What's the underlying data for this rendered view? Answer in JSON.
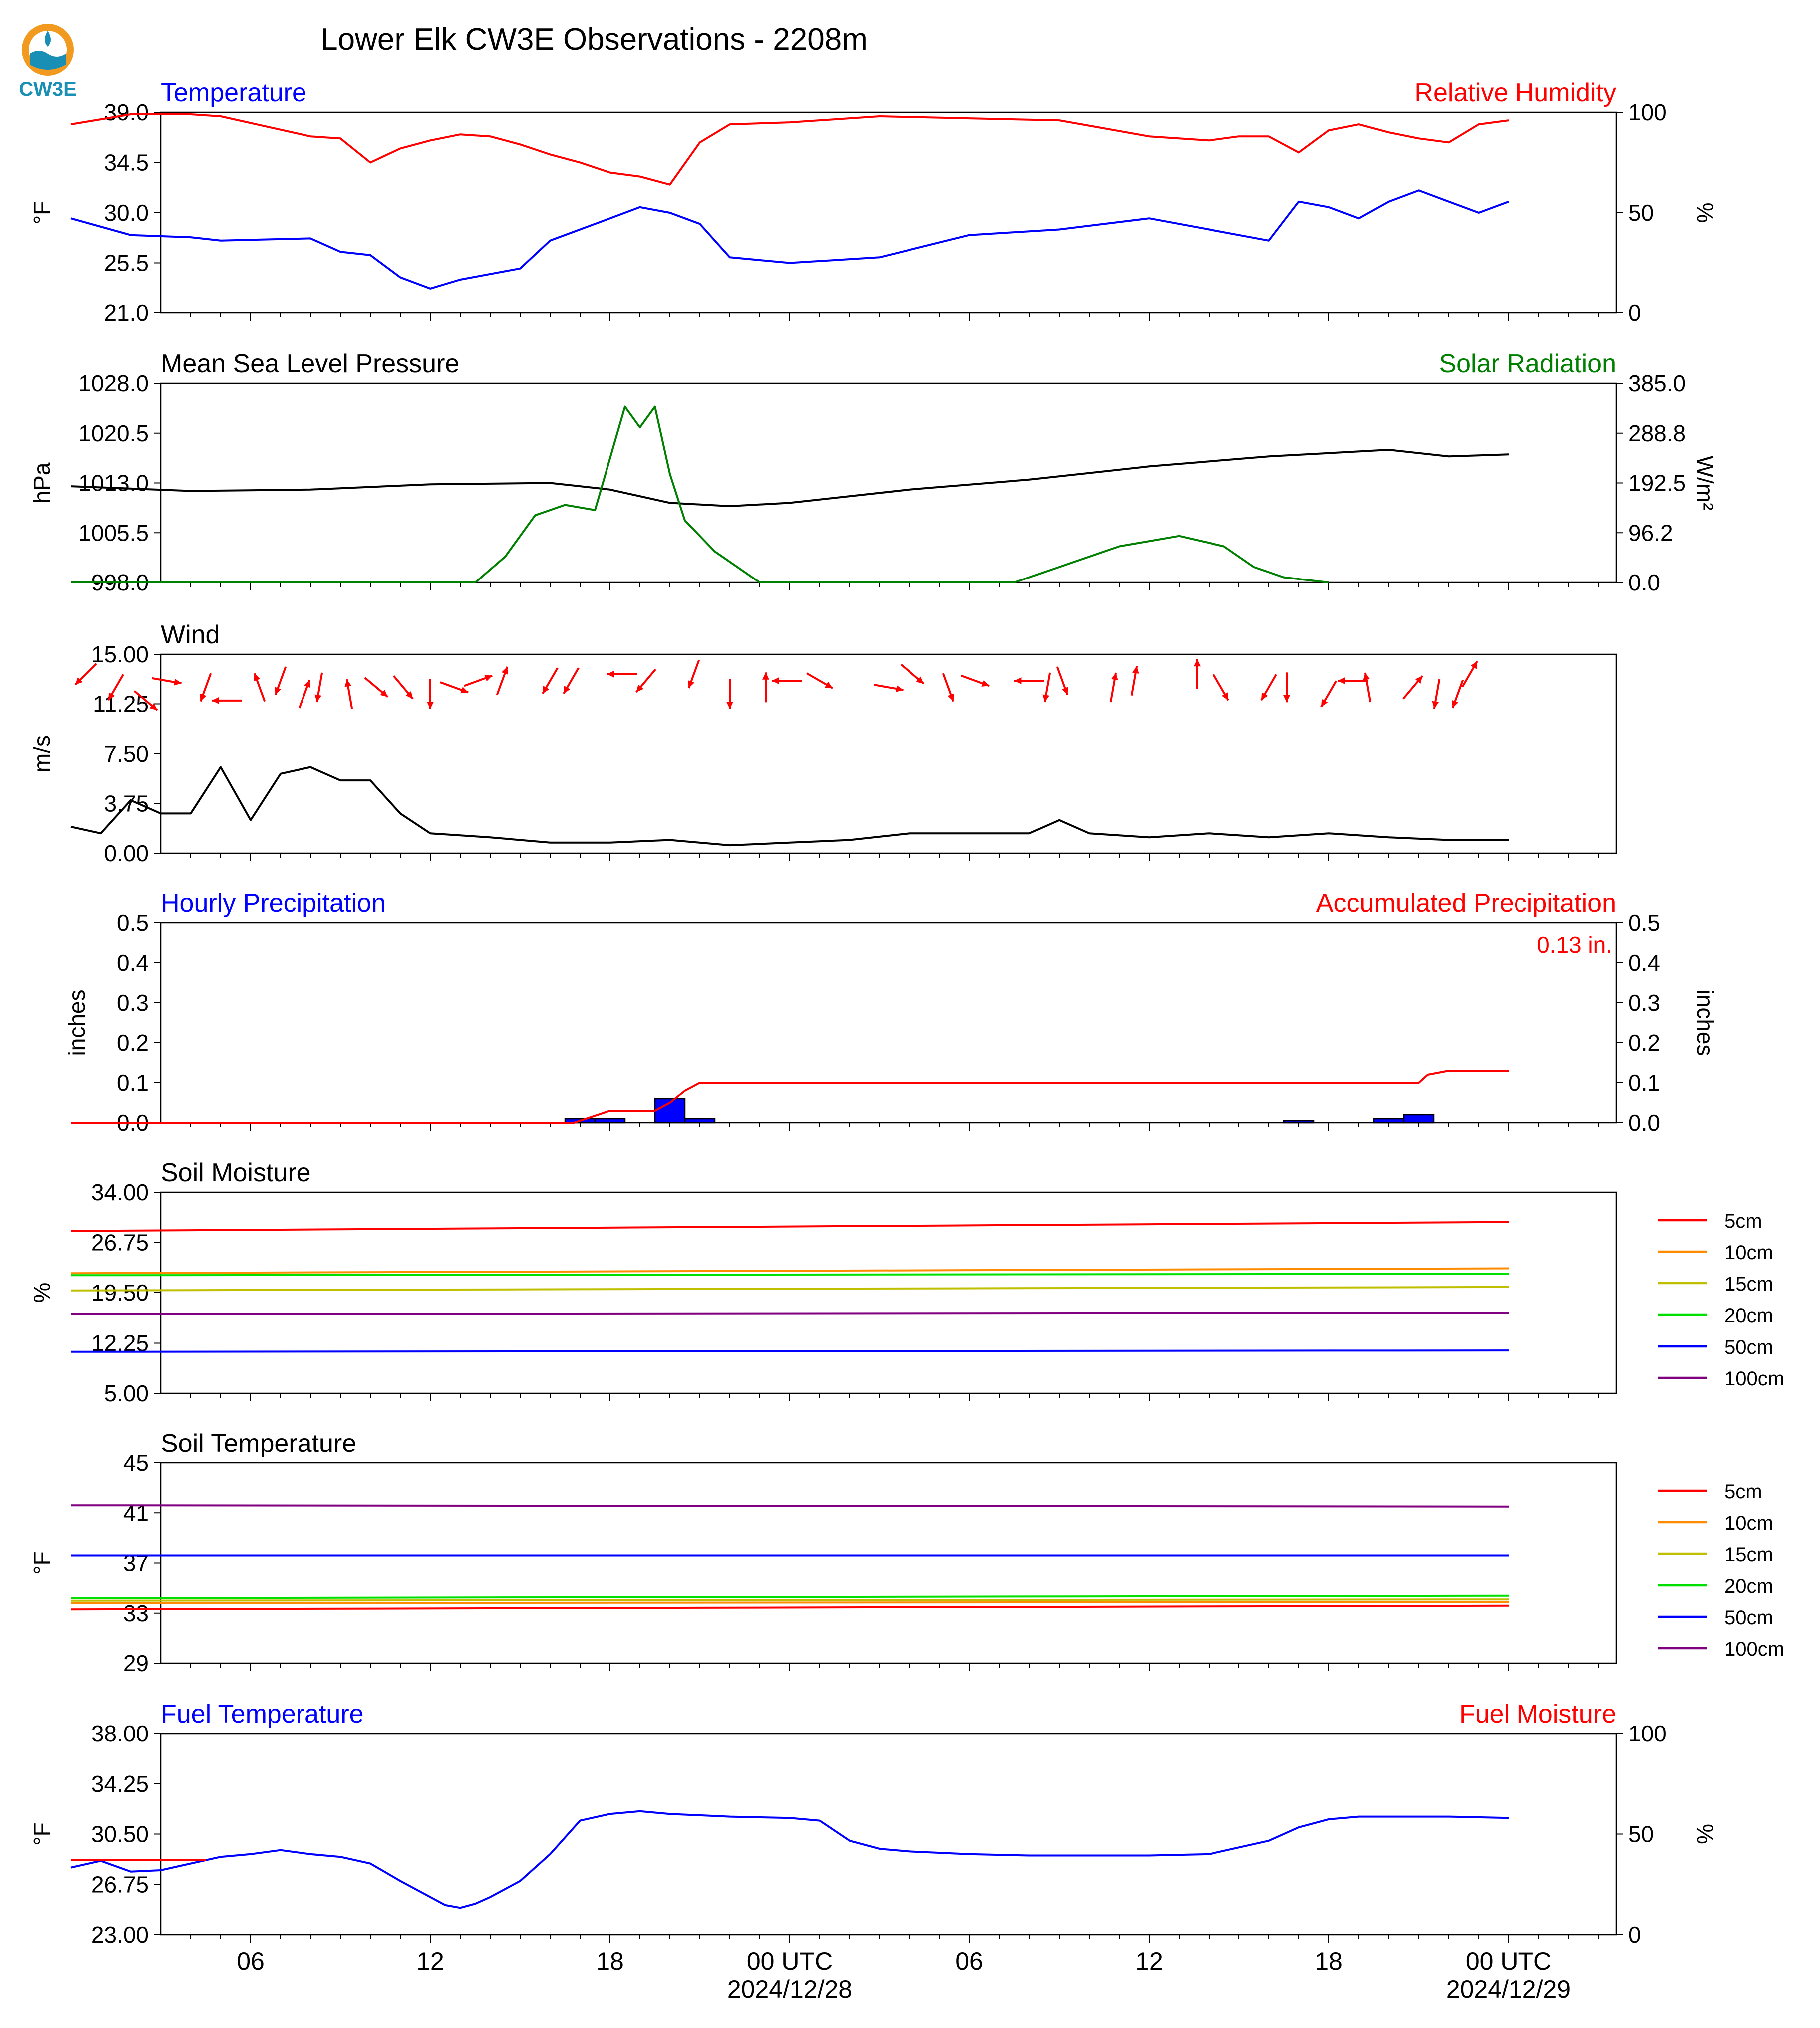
{
  "title": "Lower Elk CW3E Observations - 2208m",
  "logo": {
    "text": "CW3E"
  },
  "time_axis": {
    "tick_labels": [
      "06",
      "12",
      "18",
      "00 UTC",
      "06",
      "12",
      "18",
      "00 UTC"
    ],
    "date_labels": [
      "2024/12/28",
      "2024/12/29"
    ]
  },
  "legend_labels": [
    "5cm",
    "10cm",
    "15cm",
    "20cm",
    "50cm",
    "100cm"
  ],
  "colors": {
    "temperature": "#0000ff",
    "humidity": "#ff0000",
    "pressure": "#000000",
    "solar": "#008000",
    "wind": "#000000",
    "wind_arrow": "#ff0000",
    "precip_bar": "#0000ff",
    "precip_accum": "#ff0000",
    "5cm": "#ff0000",
    "10cm": "#ff8c00",
    "15cm": "#bfbf00",
    "20cm": "#00e000",
    "50cm": "#0000ff",
    "100cm": "#800080"
  },
  "chart_data": [
    {
      "type": "line",
      "title_left": "Temperature",
      "title_right": "Relative Humidity",
      "ylabel_left": "°F",
      "ylabel_right": "%",
      "ylim_left": [
        21.0,
        39.0
      ],
      "yticks_left": [
        "39.0",
        "34.5",
        "30.0",
        "25.5",
        "21.0"
      ],
      "ylim_right": [
        0,
        100
      ],
      "yticks_right": [
        "100",
        "50",
        "0"
      ],
      "x_hours": [
        0,
        2,
        4,
        5,
        8,
        9,
        10,
        11,
        12,
        13,
        14,
        15,
        16,
        17,
        18,
        19,
        20,
        21,
        22,
        24,
        27,
        30,
        33,
        36,
        38,
        39,
        40,
        41,
        42,
        43,
        44,
        45,
        46,
        47,
        48
      ],
      "series": [
        {
          "name": "Temperature",
          "axis": "left",
          "values": [
            29.5,
            28.0,
            27.8,
            27.5,
            27.7,
            26.5,
            26.2,
            24.2,
            23.2,
            24.0,
            24.5,
            25.0,
            27.5,
            28.5,
            29.5,
            30.5,
            30.0,
            29.0,
            26.0,
            25.5,
            26.0,
            28.0,
            28.5,
            29.5,
            28.5,
            28.0,
            27.5,
            31.0,
            30.5,
            29.5,
            31.0,
            32.0,
            31.0,
            30.0,
            31.0
          ]
        },
        {
          "name": "Relative Humidity",
          "axis": "right",
          "values": [
            94,
            99,
            99,
            98,
            88,
            87,
            75,
            82,
            86,
            89,
            88,
            84,
            79,
            75,
            70,
            68,
            64,
            85,
            94,
            95,
            98,
            97,
            96,
            88,
            86,
            88,
            88,
            80,
            91,
            94,
            90,
            87,
            85,
            94,
            96
          ]
        }
      ]
    },
    {
      "type": "line",
      "title_left": "Mean Sea Level Pressure",
      "title_right": "Solar Radiation",
      "ylabel_left": "hPa",
      "ylabel_right": "W/m²",
      "ylim_left": [
        998.0,
        1028.0
      ],
      "yticks_left": [
        "1028.0",
        "1020.5",
        "1013.0",
        "1005.5",
        "998.0"
      ],
      "ylim_right": [
        0.0,
        385.0
      ],
      "yticks_right": [
        "385.0",
        "288.8",
        "192.5",
        "96.2",
        "0.0"
      ],
      "series": [
        {
          "name": "Mean Sea Level Pressure",
          "axis": "left",
          "x_hours": [
            0,
            4,
            8,
            12,
            16,
            18,
            20,
            22,
            24,
            28,
            32,
            36,
            40,
            44,
            46,
            48
          ],
          "values": [
            1012.5,
            1011.8,
            1012.0,
            1012.8,
            1013.0,
            1012.0,
            1010.0,
            1009.5,
            1010.0,
            1012.0,
            1013.5,
            1015.5,
            1017.0,
            1018.0,
            1017.0,
            1017.3
          ]
        },
        {
          "name": "Solar Radiation",
          "axis": "right",
          "x_hours": [
            0,
            13.5,
            14.5,
            15.5,
            16.5,
            17.5,
            18.5,
            19.0,
            19.5,
            20.0,
            20.5,
            21.5,
            23.0,
            31.5,
            33.0,
            35.0,
            36.0,
            37.0,
            38.5,
            39.5,
            40.5,
            42.0
          ],
          "values": [
            0,
            0,
            50,
            130,
            150,
            140,
            340,
            300,
            340,
            210,
            120,
            60,
            0,
            0,
            30,
            70,
            80,
            90,
            70,
            30,
            10,
            0
          ]
        }
      ]
    },
    {
      "type": "line",
      "title_left": "Wind",
      "ylabel_left": "m/s",
      "ylim_left": [
        0.0,
        15.0
      ],
      "yticks_left": [
        "15.00",
        "11.25",
        "7.50",
        "3.75",
        "0.00"
      ],
      "series": [
        {
          "name": "Wind",
          "x_hours": [
            0,
            1,
            2,
            3,
            4,
            5,
            6,
            7,
            8,
            9,
            10,
            11,
            12,
            14,
            16,
            18,
            20,
            22,
            24,
            26,
            28,
            30,
            32,
            33,
            34,
            36,
            38,
            40,
            42,
            44,
            46,
            48
          ],
          "values": [
            2.0,
            1.5,
            4.0,
            3.0,
            3.0,
            6.5,
            2.5,
            6.0,
            6.5,
            5.5,
            5.5,
            3.0,
            1.5,
            1.2,
            0.8,
            0.8,
            1.0,
            0.6,
            0.8,
            1.0,
            1.5,
            1.5,
            1.5,
            2.5,
            1.5,
            1.2,
            1.5,
            1.2,
            1.5,
            1.2,
            1.0,
            1.0
          ]
        }
      ],
      "wind_arrows": {
        "x_hours": [
          0.5,
          1.5,
          2.5,
          3.2,
          4.5,
          5.2,
          6.3,
          7.0,
          7.8,
          8.3,
          9.3,
          10.2,
          11.1,
          12.0,
          12.8,
          13.6,
          14.4,
          16.0,
          16.7,
          18.4,
          19.2,
          20.8,
          22.0,
          23.2,
          23.9,
          25.0,
          27.3,
          28.1,
          29.3,
          30.2,
          32.0,
          32.6,
          33.1,
          34.8,
          35.5,
          37.6,
          38.4,
          40.0,
          40.6,
          42.0,
          42.8,
          43.3,
          44.8,
          45.6,
          46.3,
          46.7
        ],
        "directions_deg": [
          225,
          240,
          320,
          350,
          250,
          180,
          110,
          250,
          70,
          260,
          100,
          320,
          310,
          270,
          340,
          20,
          70,
          240,
          240,
          180,
          230,
          250,
          270,
          90,
          180,
          330,
          350,
          320,
          290,
          340,
          180,
          260,
          290,
          80,
          80,
          90,
          300,
          240,
          270,
          240,
          180,
          100,
          50,
          260,
          250,
          60
        ],
        "y_positions": [
          13.5,
          12.5,
          11.5,
          13.0,
          12.5,
          11.5,
          12.5,
          13.0,
          12.0,
          12.5,
          12.0,
          12.5,
          12.5,
          12.0,
          12.5,
          13.0,
          13.0,
          13.0,
          13.0,
          13.5,
          13.0,
          13.5,
          12.0,
          12.5,
          13.0,
          13.0,
          12.5,
          13.5,
          12.5,
          13.0,
          13.0,
          12.5,
          13.0,
          12.5,
          13.0,
          13.5,
          12.5,
          12.5,
          12.5,
          12.0,
          13.0,
          12.5,
          12.5,
          12.0,
          12.0,
          13.5
        ]
      }
    },
    {
      "type": "bar",
      "title_left": "Hourly Precipitation",
      "title_right": "Accumulated Precipitation",
      "ylabel_left": "inches",
      "ylabel_right": "inches",
      "ylim_left": [
        0.0,
        0.5
      ],
      "yticks_left": [
        "0.5",
        "0.4",
        "0.3",
        "0.2",
        "0.1",
        "0.0"
      ],
      "ylim_right": [
        0.0,
        0.5
      ],
      "yticks_right": [
        "0.5",
        "0.4",
        "0.3",
        "0.2",
        "0.1",
        "0.0"
      ],
      "annotation": "0.13 in.",
      "hourly_bars": {
        "x_hours": [
          17,
          18,
          20,
          21,
          41,
          44,
          45
        ],
        "values": [
          0.01,
          0.01,
          0.06,
          0.01,
          0.005,
          0.01,
          0.02
        ]
      },
      "accumulated": {
        "name": "Accumulated Precipitation",
        "x_hours": [
          0,
          16.8,
          18.0,
          18.2,
          19.5,
          20.0,
          20.5,
          21.0,
          41.5,
          45.0,
          45.3,
          46.0,
          48.0
        ],
        "values": [
          0,
          0,
          0.03,
          0.03,
          0.03,
          0.05,
          0.08,
          0.1,
          0.1,
          0.1,
          0.12,
          0.13,
          0.13
        ]
      }
    },
    {
      "type": "line",
      "title_left": "Soil Moisture",
      "ylabel_left": "%",
      "ylim_left": [
        5.0,
        34.0
      ],
      "yticks_left": [
        "34.00",
        "26.75",
        "19.50",
        "12.25",
        "5.00"
      ],
      "legend": "right",
      "x_hours": [
        0,
        48
      ],
      "series": [
        {
          "name": "5cm",
          "values": [
            28.4,
            29.7
          ]
        },
        {
          "name": "10cm",
          "values": [
            22.3,
            23.0
          ]
        },
        {
          "name": "15cm",
          "values": [
            19.8,
            20.3
          ]
        },
        {
          "name": "20cm",
          "values": [
            22.0,
            22.2
          ]
        },
        {
          "name": "50cm",
          "values": [
            11.0,
            11.2
          ]
        },
        {
          "name": "100cm",
          "values": [
            16.4,
            16.6
          ]
        }
      ]
    },
    {
      "type": "line",
      "title_left": "Soil Temperature",
      "ylabel_left": "°F",
      "ylim_left": [
        29,
        45
      ],
      "yticks_left": [
        "45",
        "41",
        "37",
        "33",
        "29"
      ],
      "legend": "right",
      "x_hours": [
        0,
        48
      ],
      "series": [
        {
          "name": "5cm",
          "values": [
            33.3,
            33.6
          ]
        },
        {
          "name": "10cm",
          "values": [
            33.8,
            33.9
          ]
        },
        {
          "name": "15cm",
          "values": [
            34.0,
            34.1
          ]
        },
        {
          "name": "20cm",
          "values": [
            34.2,
            34.4
          ]
        },
        {
          "name": "50cm",
          "values": [
            37.6,
            37.6
          ]
        },
        {
          "name": "100cm",
          "values": [
            41.6,
            41.5
          ]
        }
      ]
    },
    {
      "type": "line",
      "title_left": "Fuel Temperature",
      "title_right": "Fuel Moisture",
      "ylabel_left": "°F",
      "ylabel_right": "%",
      "ylim_left": [
        23.0,
        38.0
      ],
      "yticks_left": [
        "38.00",
        "34.25",
        "30.50",
        "26.75",
        "23.00"
      ],
      "ylim_right": [
        0,
        100
      ],
      "yticks_right": [
        "100",
        "50",
        "0"
      ],
      "series": [
        {
          "name": "Fuel Temperature",
          "axis": "left",
          "x_hours": [
            0,
            1,
            2,
            3,
            4,
            5,
            6,
            7,
            8,
            9,
            10,
            11,
            12,
            12.5,
            13,
            13.5,
            14,
            15,
            16,
            17,
            18,
            19,
            20,
            22,
            24,
            25,
            26,
            27,
            28,
            30,
            32,
            34,
            36,
            38,
            40,
            41,
            42,
            43,
            44,
            46,
            48
          ],
          "values": [
            28.0,
            28.5,
            27.7,
            27.8,
            28.3,
            28.8,
            29.0,
            29.3,
            29.0,
            28.8,
            28.3,
            27.0,
            25.8,
            25.2,
            25.0,
            25.3,
            25.8,
            27.0,
            29.0,
            31.5,
            32.0,
            32.2,
            32.0,
            31.8,
            31.7,
            31.5,
            30.0,
            29.4,
            29.2,
            29.0,
            28.9,
            28.9,
            28.9,
            29.0,
            30.0,
            31.0,
            31.6,
            31.8,
            31.8,
            31.8,
            31.7
          ]
        },
        {
          "name": "Fuel Moisture",
          "axis": "right",
          "x_hours": [
            0,
            4.5
          ],
          "values": [
            37,
            37
          ]
        }
      ]
    }
  ]
}
